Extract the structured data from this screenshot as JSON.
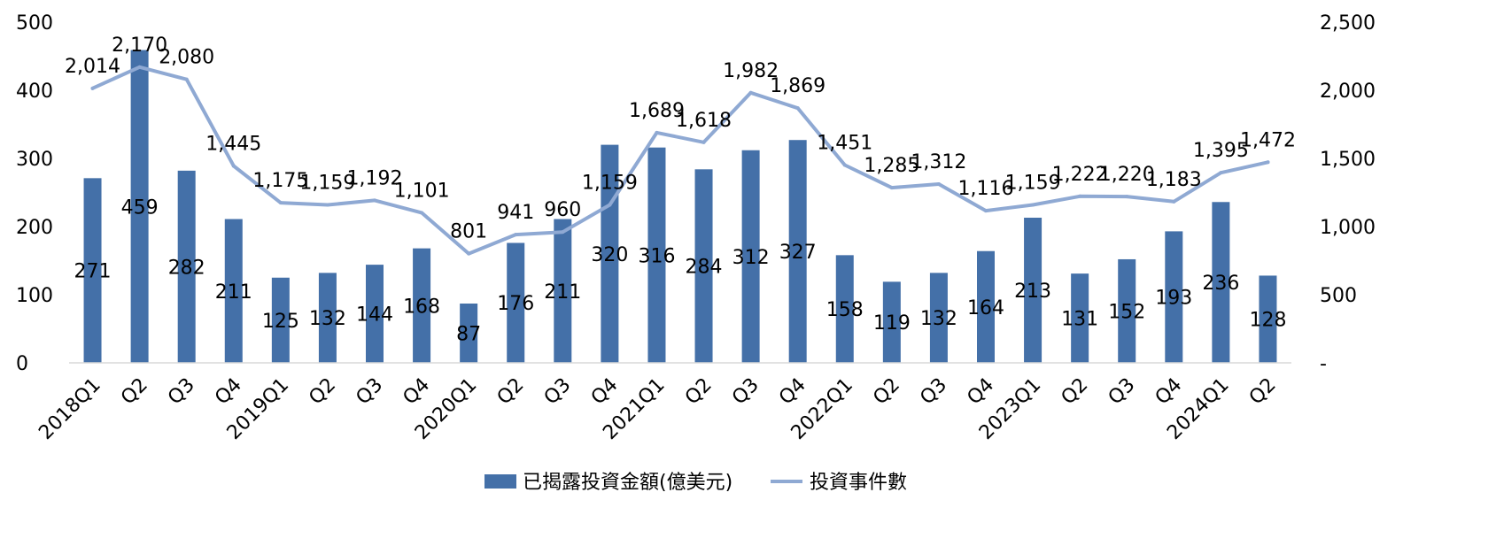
{
  "chart_data": {
    "type": "bar",
    "categories": [
      "2018Q1",
      "Q2",
      "Q3",
      "Q4",
      "2019Q1",
      "Q2",
      "Q3",
      "Q4",
      "2020Q1",
      "Q2",
      "Q3",
      "Q4",
      "2021Q1",
      "Q2",
      "Q3",
      "Q4",
      "2022Q1",
      "Q2",
      "Q3",
      "Q4",
      "2023Q1",
      "Q2",
      "Q3",
      "Q4",
      "2024Q1",
      "Q2"
    ],
    "series": [
      {
        "name": "已揭露投資金額(億美元)",
        "type": "bar",
        "axis": "left",
        "color": "#4470a8",
        "values": [
          271,
          459,
          282,
          211,
          125,
          132,
          144,
          168,
          87,
          176,
          211,
          320,
          316,
          284,
          312,
          327,
          158,
          119,
          132,
          164,
          213,
          131,
          152,
          193,
          236,
          128
        ],
        "labels": [
          "271",
          "459",
          "282",
          "211",
          "125",
          "132",
          "144",
          "168",
          "87",
          "176",
          "211",
          "320",
          "316",
          "284",
          "312",
          "327",
          "158",
          "119",
          "132",
          "164",
          "213",
          "131",
          "152",
          "193",
          "236",
          "128"
        ]
      },
      {
        "name": "投資事件數",
        "type": "line",
        "axis": "right",
        "color": "#8fa9d3",
        "values": [
          2014,
          2170,
          2080,
          1445,
          1175,
          1159,
          1192,
          1101,
          801,
          941,
          960,
          1159,
          1689,
          1618,
          1982,
          1869,
          1451,
          1285,
          1312,
          1116,
          1159,
          1222,
          1220,
          1183,
          1395,
          1472
        ],
        "labels": [
          "2,014",
          "2,170",
          "2,080",
          "1,445",
          "1,175",
          "1,159",
          "1,192",
          "1,101",
          "801",
          "941",
          "960",
          "1,159",
          "1,689",
          "1,618",
          "1,982",
          "1,869",
          "1,451",
          "1,285",
          "1,312",
          "1,116",
          "1,159",
          "1,222",
          "1,220",
          "1,183",
          "1,395",
          "1,472"
        ]
      }
    ],
    "left_axis": {
      "ylim": [
        0,
        500
      ],
      "ticks": [
        0,
        100,
        200,
        300,
        400,
        500
      ],
      "tick_labels": [
        "0",
        "100",
        "200",
        "300",
        "400",
        "500"
      ]
    },
    "right_axis": {
      "ylim": [
        0,
        2500
      ],
      "ticks": [
        0,
        500,
        1000,
        1500,
        2000,
        2500
      ],
      "tick_labels": [
        "-",
        "500",
        "1,000",
        "1,500",
        "2,000",
        "2,500"
      ]
    },
    "grid": false,
    "legend_position": "bottom"
  }
}
